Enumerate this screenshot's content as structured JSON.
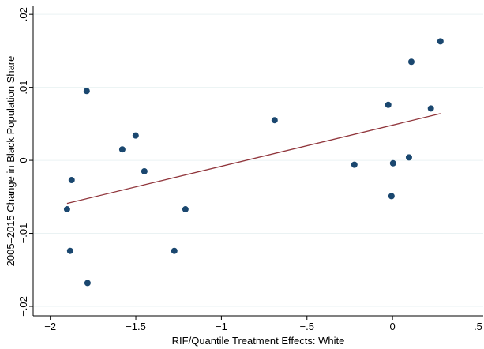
{
  "chart_data": {
    "type": "scatter",
    "x_label": "RIF/Quantile Treatment Effects: White",
    "y_label": "2005–2015 Change in Black Population Share",
    "xlim": [
      -2.1,
      0.53
    ],
    "ylim": [
      -0.0213,
      0.0211
    ],
    "xticks": [
      {
        "value": -2,
        "label": "−2"
      },
      {
        "value": -1.5,
        "label": "−1.5"
      },
      {
        "value": -1,
        "label": "−1"
      },
      {
        "value": -0.5,
        "label": "−.5"
      },
      0,
      {
        "value": 0.5,
        "label": ".5"
      }
    ],
    "yticks": [
      {
        "value": -0.02,
        "label": "−.02"
      },
      {
        "value": -0.01,
        "label": "−.01"
      },
      0,
      {
        "value": 0.01,
        "label": ".01"
      },
      {
        "value": 0.02,
        "label": ".02"
      }
    ],
    "grid": true,
    "series": [
      {
        "color": "#1a476f",
        "x": [
          -1.902,
          -1.884,
          -1.875,
          -1.787,
          -1.782,
          -1.579,
          -1.501,
          -1.45,
          -1.21,
          -1.275,
          -0.689,
          -0.223,
          -0.025,
          0.003,
          -0.006,
          0.096,
          0.11,
          0.224,
          0.28
        ],
        "values": [
          -0.0067,
          -0.0124,
          -0.0027,
          0.0095,
          -0.0168,
          0.0015,
          0.0034,
          -0.0015,
          -0.0067,
          -0.0124,
          0.0055,
          -0.0006,
          0.0076,
          -0.0004,
          -0.0049,
          0.0004,
          0.0135,
          0.0071,
          0.0163
        ]
      },
      {
        "color": "#90353b",
        "line": true,
        "x": [
          -1.902,
          0.28
        ],
        "values": [
          -0.0059,
          0.0064
        ]
      }
    ]
  }
}
